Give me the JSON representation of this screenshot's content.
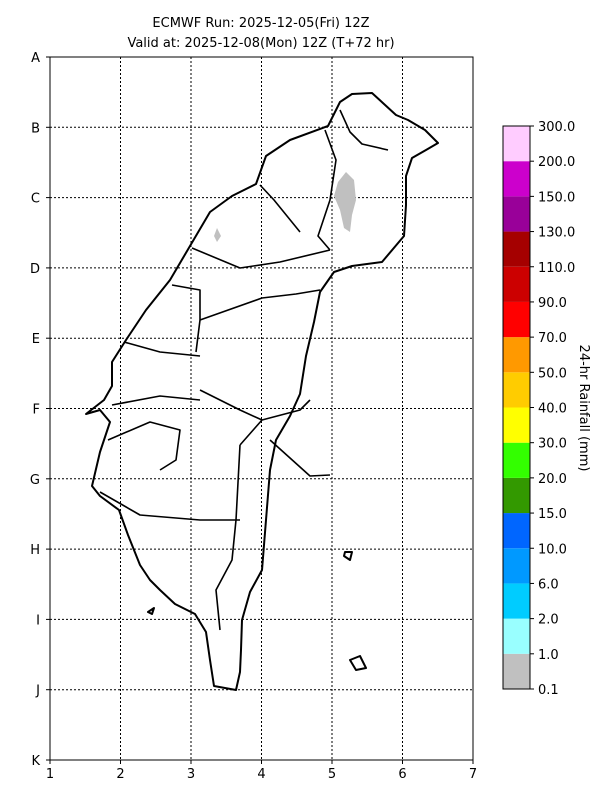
{
  "title": [
    "ECMWF Run: 2025-12-05(Fri) 12Z",
    "Valid at: 2025-12-08(Mon) 12Z (T+72 hr)"
  ],
  "map": {
    "x_labels": [
      "1",
      "2",
      "3",
      "4",
      "5",
      "6",
      "7"
    ],
    "y_labels": [
      "A",
      "B",
      "C",
      "D",
      "E",
      "F",
      "G",
      "H",
      "I",
      "J",
      "K"
    ]
  },
  "colorbar": {
    "label": "24-hr Rainfall (mm)",
    "ticks": [
      "0.1",
      "1.0",
      "2.0",
      "6.0",
      "10.0",
      "15.0",
      "20.0",
      "30.0",
      "40.0",
      "50.0",
      "70.0",
      "90.0",
      "110.0",
      "130.0",
      "150.0",
      "200.0",
      "300.0"
    ],
    "colors": [
      "#c0c0c0",
      "#99ffff",
      "#00ccff",
      "#0099ff",
      "#0066ff",
      "#339900",
      "#33ff00",
      "#ffff00",
      "#ffcc00",
      "#ff9900",
      "#ff0000",
      "#cc0000",
      "#a50000",
      "#990099",
      "#cc00cc",
      "#ffccff"
    ]
  }
}
